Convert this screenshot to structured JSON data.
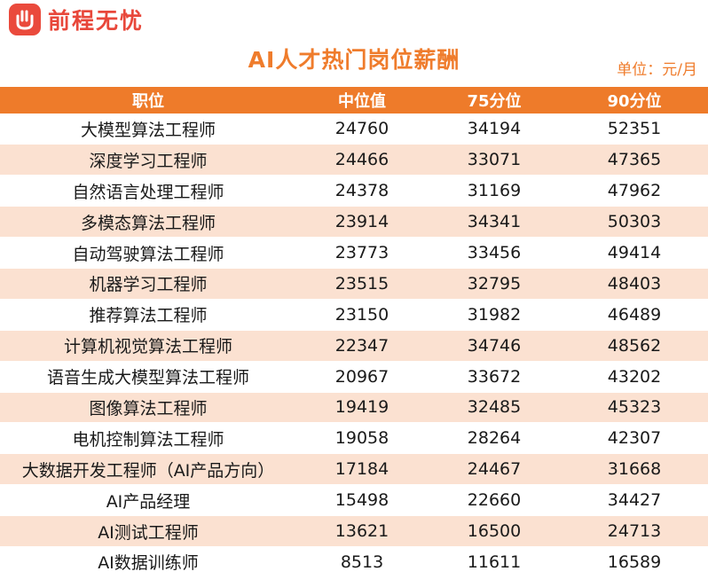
{
  "brand": {
    "name": "前程无忧",
    "logo_icon": "hand-logo-icon",
    "color": "#e8473a"
  },
  "title": "AI人才热门岗位薪酬",
  "unit": "单位：元/月",
  "colors": {
    "accent": "#ee7b2a",
    "row_alt": "#fbe1d1"
  },
  "table": {
    "headers": [
      "职位",
      "中位值",
      "75分位",
      "90分位"
    ],
    "rows": [
      [
        "大模型算法工程师",
        "24760",
        "34194",
        "52351"
      ],
      [
        "深度学习工程师",
        "24466",
        "33071",
        "47365"
      ],
      [
        "自然语言处理工程师",
        "24378",
        "31169",
        "47962"
      ],
      [
        "多模态算法工程师",
        "23914",
        "34341",
        "50303"
      ],
      [
        "自动驾驶算法工程师",
        "23773",
        "33456",
        "49414"
      ],
      [
        "机器学习工程师",
        "23515",
        "32795",
        "48403"
      ],
      [
        "推荐算法工程师",
        "23150",
        "31982",
        "46489"
      ],
      [
        "计算机视觉算法工程师",
        "22347",
        "34746",
        "48562"
      ],
      [
        "语音生成大模型算法工程师",
        "20967",
        "33672",
        "43202"
      ],
      [
        "图像算法工程师",
        "19419",
        "32485",
        "45323"
      ],
      [
        "电机控制算法工程师",
        "19058",
        "28264",
        "42307"
      ],
      [
        "大数据开发工程师（AI产品方向）",
        "17184",
        "24467",
        "31668"
      ],
      [
        "AI产品经理",
        "15498",
        "22660",
        "34427"
      ],
      [
        "AI测试工程师",
        "13621",
        "16500",
        "24713"
      ],
      [
        "AI数据训练师",
        "8513",
        "11611",
        "16589"
      ]
    ]
  }
}
